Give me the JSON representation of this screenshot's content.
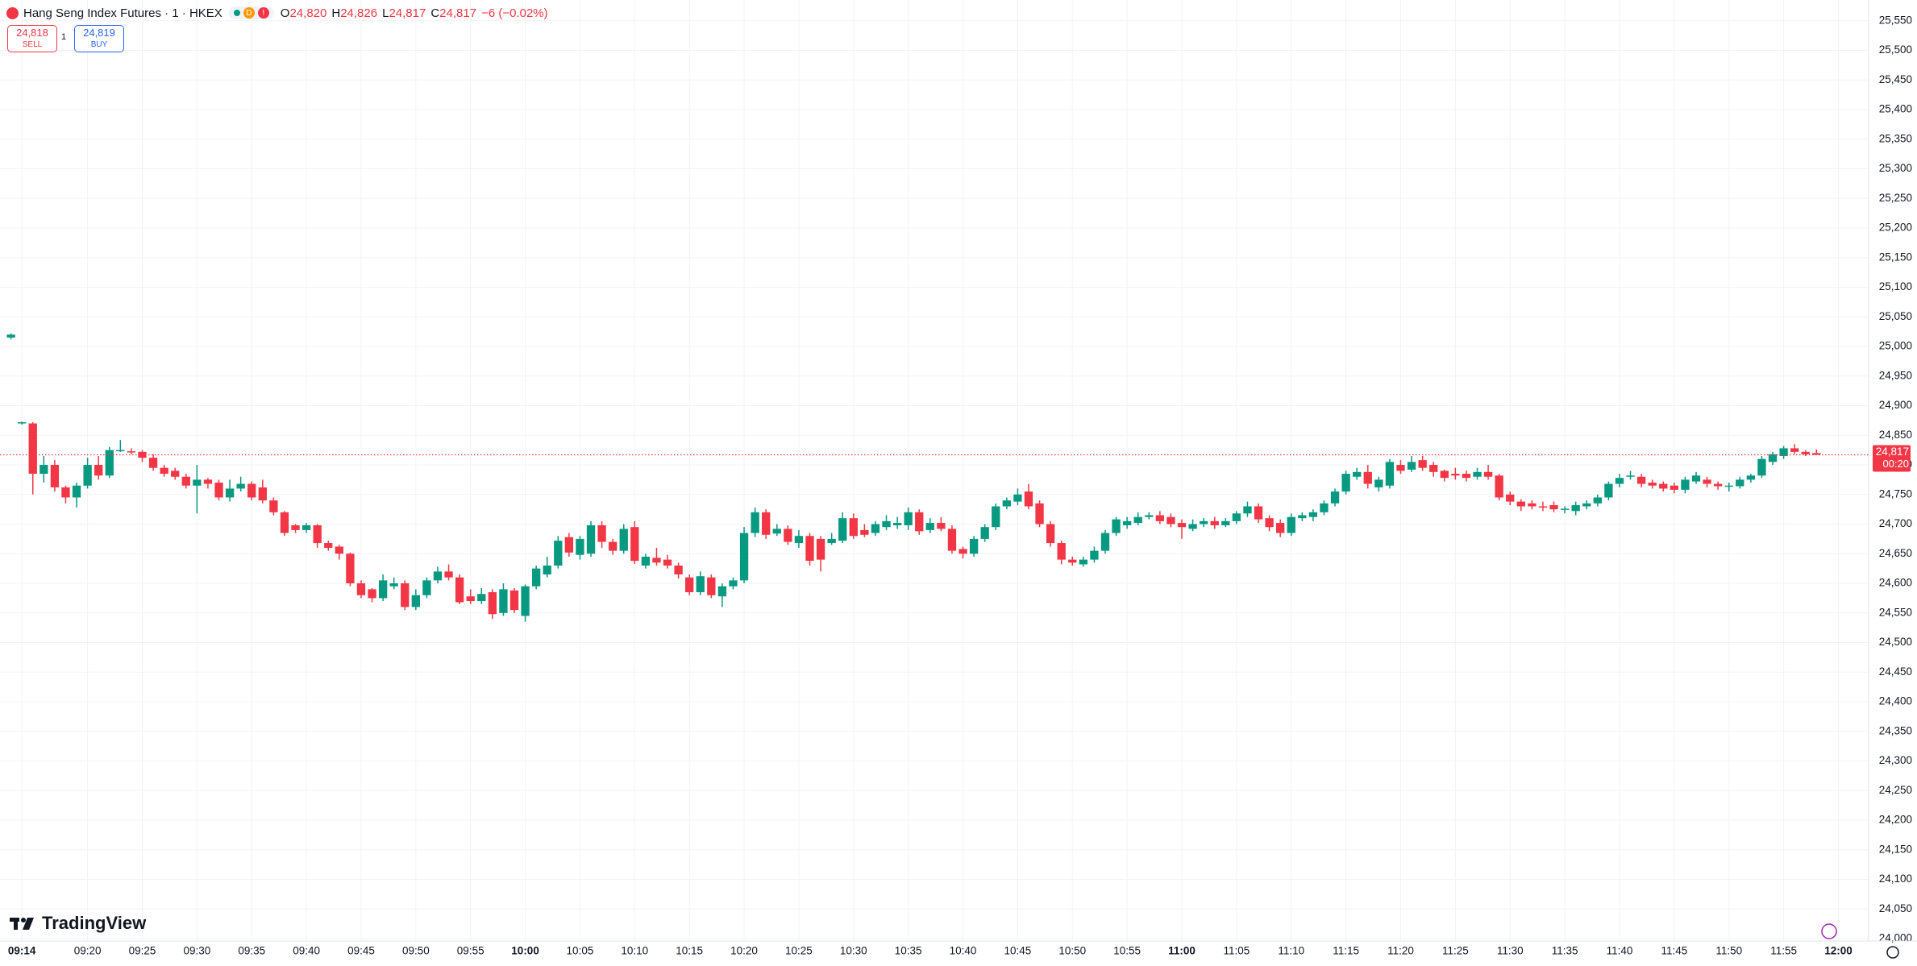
{
  "header": {
    "title": "Hang Seng Index Futures · 1 · HKEX",
    "flag": "D",
    "alert": "!",
    "o_label": "O",
    "open": "24,820",
    "h_label": "H",
    "high": "24,826",
    "l_label": "L",
    "low": "24,817",
    "c_label": "C",
    "close": "24,817",
    "change": "−6 (−0.02%)"
  },
  "trade": {
    "sell_price": "24,818",
    "sell": "SELL",
    "spread": "1",
    "buy_price": "24,819",
    "buy": "BUY"
  },
  "watermark": "TradingView",
  "chart_data": {
    "type": "candlestick",
    "up_color": "#089981",
    "down_color": "#f23645",
    "grid": true,
    "ylim": [
      23996,
      25585
    ],
    "yticks": [
      {
        "value": 24000,
        "label": "24,000"
      },
      {
        "value": 24050,
        "label": "24,050"
      },
      {
        "value": 24100,
        "label": "24,100"
      },
      {
        "value": 24150,
        "label": "24,150"
      },
      {
        "value": 24200,
        "label": "24,200"
      },
      {
        "value": 24250,
        "label": "24,250"
      },
      {
        "value": 24300,
        "label": "24,300"
      },
      {
        "value": 24350,
        "label": "24,350"
      },
      {
        "value": 24400,
        "label": "24,400"
      },
      {
        "value": 24450,
        "label": "24,450"
      },
      {
        "value": 24500,
        "label": "24,500"
      },
      {
        "value": 24550,
        "label": "24,550"
      },
      {
        "value": 24600,
        "label": "24,600"
      },
      {
        "value": 24650,
        "label": "24,650"
      },
      {
        "value": 24700,
        "label": "24,700"
      },
      {
        "value": 24750,
        "label": "24,750"
      },
      {
        "value": 24800,
        "label": "24,800"
      },
      {
        "value": 24850,
        "label": "24,850"
      },
      {
        "value": 24900,
        "label": "24,900"
      },
      {
        "value": 24950,
        "label": "24,950"
      },
      {
        "value": 25000,
        "label": "25,000"
      },
      {
        "value": 25050,
        "label": "25,050"
      },
      {
        "value": 25100,
        "label": "25,100"
      },
      {
        "value": 25150,
        "label": "25,150"
      },
      {
        "value": 25200,
        "label": "25,200"
      },
      {
        "value": 25250,
        "label": "25,250"
      },
      {
        "value": 25300,
        "label": "25,300"
      },
      {
        "value": 25350,
        "label": "25,350"
      },
      {
        "value": 25400,
        "label": "25,400"
      },
      {
        "value": 25450,
        "label": "25,450"
      },
      {
        "value": 25500,
        "label": "25,500"
      },
      {
        "value": 25550,
        "label": "25,550"
      }
    ],
    "last_price": {
      "value": 24817,
      "label": "24,817",
      "countdown": "00:20"
    },
    "categories": [
      null,
      "09:14",
      null,
      null,
      null,
      null,
      null,
      "09:20",
      null,
      null,
      null,
      null,
      "09:25",
      null,
      null,
      null,
      null,
      "09:30",
      null,
      null,
      null,
      null,
      "09:35",
      null,
      null,
      null,
      null,
      "09:40",
      null,
      null,
      null,
      null,
      "09:45",
      null,
      null,
      null,
      null,
      "09:50",
      null,
      null,
      null,
      null,
      "09:55",
      null,
      null,
      null,
      null,
      "10:00",
      null,
      null,
      null,
      null,
      "10:05",
      null,
      null,
      null,
      null,
      "10:10",
      null,
      null,
      null,
      null,
      "10:15",
      null,
      null,
      null,
      null,
      "10:20",
      null,
      null,
      null,
      null,
      "10:25",
      null,
      null,
      null,
      null,
      "10:30",
      null,
      null,
      null,
      null,
      "10:35",
      null,
      null,
      null,
      null,
      "10:40",
      null,
      null,
      null,
      null,
      "10:45",
      null,
      null,
      null,
      null,
      "10:50",
      null,
      null,
      null,
      null,
      "10:55",
      null,
      null,
      null,
      null,
      "11:00",
      null,
      null,
      null,
      null,
      "11:05",
      null,
      null,
      null,
      null,
      "11:10",
      null,
      null,
      null,
      null,
      "11:15",
      null,
      null,
      null,
      null,
      "11:20",
      null,
      null,
      null,
      null,
      "11:25",
      null,
      null,
      null,
      null,
      "11:30",
      null,
      null,
      null,
      null,
      "11:35",
      null,
      null,
      null,
      null,
      "11:40",
      null,
      null,
      null,
      null,
      "11:45",
      null,
      null,
      null,
      null,
      "11:50",
      null,
      null,
      null,
      null,
      "11:55",
      null,
      null,
      null,
      null,
      "12:00"
    ],
    "ohlc": [
      [
        25015,
        25022,
        25012,
        25020
      ],
      [
        24870,
        24873,
        24868,
        24872
      ],
      [
        24870,
        24872,
        24750,
        24785
      ],
      [
        24785,
        24815,
        24770,
        24800
      ],
      [
        24800,
        24808,
        24755,
        24762
      ],
      [
        24762,
        24765,
        24735,
        24745
      ],
      [
        24745,
        24770,
        24728,
        24765
      ],
      [
        24765,
        24812,
        24760,
        24800
      ],
      [
        24800,
        24815,
        24775,
        24782
      ],
      [
        24782,
        24830,
        24778,
        24825
      ],
      [
        24825,
        24842,
        24822,
        24825
      ],
      [
        24823,
        24828,
        24818,
        24822
      ],
      [
        24822,
        24825,
        24805,
        24812
      ],
      [
        24812,
        24818,
        24790,
        24795
      ],
      [
        24795,
        24800,
        24780,
        24785
      ],
      [
        24790,
        24795,
        24775,
        24780
      ],
      [
        24780,
        24785,
        24760,
        24765
      ],
      [
        24765,
        24800,
        24718,
        24775
      ],
      [
        24775,
        24778,
        24760,
        24768
      ],
      [
        24770,
        24775,
        24740,
        24745
      ],
      [
        24745,
        24775,
        24738,
        24760
      ],
      [
        24760,
        24780,
        24755,
        24768
      ],
      [
        24768,
        24772,
        24740,
        24745
      ],
      [
        24762,
        24775,
        24735,
        24740
      ],
      [
        24740,
        24745,
        24715,
        24720
      ],
      [
        24720,
        24722,
        24680,
        24685
      ],
      [
        24698,
        24700,
        24685,
        24690
      ],
      [
        24690,
        24702,
        24685,
        24698
      ],
      [
        24698,
        24700,
        24660,
        24668
      ],
      [
        24668,
        24672,
        24655,
        24660
      ],
      [
        24662,
        24665,
        24640,
        24650
      ],
      [
        24650,
        24652,
        24595,
        24600
      ],
      [
        24600,
        24605,
        24575,
        24580
      ],
      [
        24590,
        24592,
        24568,
        24575
      ],
      [
        24575,
        24615,
        24570,
        24605
      ],
      [
        24595,
        24610,
        24590,
        24600
      ],
      [
        24600,
        24605,
        24555,
        24560
      ],
      [
        24560,
        24590,
        24555,
        24580
      ],
      [
        24580,
        24610,
        24575,
        24605
      ],
      [
        24605,
        24628,
        24600,
        24620
      ],
      [
        24620,
        24632,
        24605,
        24610
      ],
      [
        24610,
        24615,
        24565,
        24568
      ],
      [
        24578,
        24590,
        24565,
        24570
      ],
      [
        24570,
        24592,
        24565,
        24582
      ],
      [
        24585,
        24590,
        24540,
        24548
      ],
      [
        24550,
        24600,
        24545,
        24590
      ],
      [
        24588,
        24592,
        24550,
        24555
      ],
      [
        24545,
        24598,
        24535,
        24595
      ],
      [
        24595,
        24630,
        24590,
        24625
      ],
      [
        24615,
        24645,
        24610,
        24630
      ],
      [
        24630,
        24680,
        24625,
        24672
      ],
      [
        24678,
        24685,
        24645,
        24652
      ],
      [
        24648,
        24680,
        24640,
        24675
      ],
      [
        24650,
        24705,
        24645,
        24698
      ],
      [
        24698,
        24705,
        24660,
        24670
      ],
      [
        24670,
        24675,
        24648,
        24655
      ],
      [
        24655,
        24700,
        24650,
        24692
      ],
      [
        24695,
        24705,
        24633,
        24638
      ],
      [
        24630,
        24650,
        24625,
        24645
      ],
      [
        24643,
        24660,
        24630,
        24635
      ],
      [
        24640,
        24648,
        24625,
        24630
      ],
      [
        24630,
        24635,
        24608,
        24615
      ],
      [
        24610,
        24615,
        24580,
        24585
      ],
      [
        24585,
        24620,
        24580,
        24612
      ],
      [
        24610,
        24615,
        24575,
        24580
      ],
      [
        24578,
        24600,
        24560,
        24595
      ],
      [
        24595,
        24610,
        24590,
        24605
      ],
      [
        24605,
        24695,
        24600,
        24685
      ],
      [
        24685,
        24728,
        24678,
        24720
      ],
      [
        24720,
        24725,
        24675,
        24682
      ],
      [
        24684,
        24700,
        24680,
        24692
      ],
      [
        24692,
        24698,
        24665,
        24670
      ],
      [
        24668,
        24690,
        24660,
        24680
      ],
      [
        24680,
        24685,
        24630,
        24638
      ],
      [
        24675,
        24680,
        24620,
        24640
      ],
      [
        24668,
        24685,
        24665,
        24675
      ],
      [
        24672,
        24720,
        24668,
        24710
      ],
      [
        24710,
        24718,
        24675,
        24680
      ],
      [
        24690,
        24700,
        24678,
        24682
      ],
      [
        24685,
        24705,
        24680,
        24700
      ],
      [
        24695,
        24715,
        24690,
        24705
      ],
      [
        24698,
        24712,
        24692,
        24702
      ],
      [
        24698,
        24728,
        24690,
        24720
      ],
      [
        24720,
        24725,
        24682,
        24688
      ],
      [
        24690,
        24710,
        24685,
        24702
      ],
      [
        24702,
        24712,
        24688,
        24692
      ],
      [
        24692,
        24698,
        24650,
        24655
      ],
      [
        24658,
        24662,
        24642,
        24650
      ],
      [
        24650,
        24680,
        24645,
        24675
      ],
      [
        24675,
        24700,
        24670,
        24695
      ],
      [
        24695,
        24735,
        24690,
        24730
      ],
      [
        24730,
        24745,
        24725,
        24740
      ],
      [
        24738,
        24760,
        24732,
        24750
      ],
      [
        24755,
        24768,
        24725,
        24730
      ],
      [
        24735,
        24740,
        24695,
        24700
      ],
      [
        24700,
        24705,
        24662,
        24668
      ],
      [
        24668,
        24672,
        24632,
        24640
      ],
      [
        24640,
        24645,
        24630,
        24635
      ],
      [
        24632,
        24645,
        24628,
        24640
      ],
      [
        24640,
        24662,
        24635,
        24655
      ],
      [
        24655,
        24690,
        24650,
        24685
      ],
      [
        24685,
        24712,
        24680,
        24708
      ],
      [
        24698,
        24712,
        24692,
        24705
      ],
      [
        24702,
        24720,
        24698,
        24712
      ],
      [
        24712,
        24720,
        24708,
        24715
      ],
      [
        24715,
        24722,
        24700,
        24705
      ],
      [
        24712,
        24718,
        24695,
        24700
      ],
      [
        24702,
        24708,
        24675,
        24695
      ],
      [
        24692,
        24708,
        24688,
        24700
      ],
      [
        24700,
        24710,
        24695,
        24705
      ],
      [
        24705,
        24712,
        24692,
        24698
      ],
      [
        24698,
        24710,
        24695,
        24705
      ],
      [
        24705,
        24722,
        24700,
        24718
      ],
      [
        24718,
        24738,
        24712,
        24730
      ],
      [
        24730,
        24735,
        24702,
        24708
      ],
      [
        24710,
        24715,
        24688,
        24695
      ],
      [
        24702,
        24708,
        24678,
        24685
      ],
      [
        24685,
        24718,
        24680,
        24712
      ],
      [
        24710,
        24720,
        24705,
        24715
      ],
      [
        24712,
        24725,
        24705,
        24720
      ],
      [
        24720,
        24740,
        24715,
        24735
      ],
      [
        24735,
        24760,
        24730,
        24755
      ],
      [
        24755,
        24790,
        24750,
        24785
      ],
      [
        24780,
        24795,
        24775,
        24788
      ],
      [
        24788,
        24800,
        24760,
        24768
      ],
      [
        24762,
        24780,
        24755,
        24775
      ],
      [
        24765,
        24810,
        24760,
        24805
      ],
      [
        24800,
        24808,
        24785,
        24790
      ],
      [
        24792,
        24815,
        24788,
        24805
      ],
      [
        24808,
        24815,
        24790,
        24795
      ],
      [
        24800,
        24805,
        24780,
        24788
      ],
      [
        24790,
        24792,
        24772,
        24778
      ],
      [
        24785,
        24795,
        24775,
        24782
      ],
      [
        24785,
        24790,
        24772,
        24778
      ],
      [
        24780,
        24795,
        24775,
        24788
      ],
      [
        24788,
        24800,
        24775,
        24780
      ],
      [
        24782,
        24785,
        24740,
        24745
      ],
      [
        24750,
        24755,
        24732,
        24738
      ],
      [
        24738,
        24742,
        24722,
        24730
      ],
      [
        24735,
        24740,
        24725,
        24730
      ],
      [
        24730,
        24738,
        24722,
        24728
      ],
      [
        24732,
        24738,
        24720,
        24725
      ],
      [
        24725,
        24730,
        24718,
        24726
      ],
      [
        24722,
        24738,
        24715,
        24732
      ],
      [
        24730,
        24740,
        24725,
        24735
      ],
      [
        24735,
        24750,
        24730,
        24745
      ],
      [
        24745,
        24772,
        24740,
        24768
      ],
      [
        24768,
        24785,
        24762,
        24778
      ],
      [
        24780,
        24790,
        24775,
        24782
      ],
      [
        24780,
        24785,
        24762,
        24768
      ],
      [
        24770,
        24775,
        24760,
        24765
      ],
      [
        24768,
        24772,
        24755,
        24760
      ],
      [
        24765,
        24770,
        24752,
        24758
      ],
      [
        24758,
        24780,
        24752,
        24775
      ],
      [
        24772,
        24788,
        24768,
        24782
      ],
      [
        24775,
        24780,
        24762,
        24768
      ],
      [
        24768,
        24772,
        24758,
        24764
      ],
      [
        24764,
        24770,
        24755,
        24765
      ],
      [
        24764,
        24780,
        24760,
        24775
      ],
      [
        24775,
        24785,
        24770,
        24782
      ],
      [
        24782,
        24815,
        24778,
        24810
      ],
      [
        24805,
        24822,
        24800,
        24818
      ],
      [
        24815,
        24832,
        24810,
        24828
      ],
      [
        24828,
        24835,
        24818,
        24822
      ],
      [
        24822,
        24825,
        24815,
        24818
      ],
      [
        24820,
        24826,
        24817,
        24817
      ],
      null,
      null
    ]
  }
}
